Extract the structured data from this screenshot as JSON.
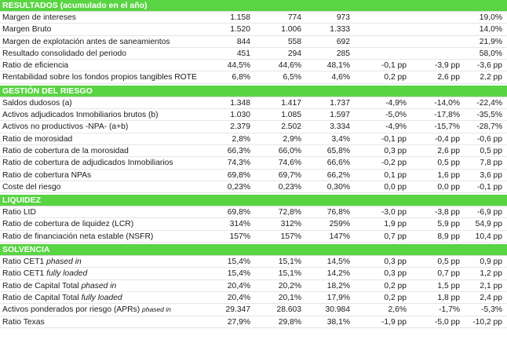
{
  "sections": [
    {
      "title": "RESULTADOS (acumulado en el año)",
      "rows": [
        {
          "label": "Margen de intereses",
          "values": [
            "1.158",
            "774",
            "973",
            "",
            "",
            "19,0%"
          ]
        },
        {
          "label": "Margen Bruto",
          "values": [
            "1.520",
            "1.006",
            "1.333",
            "",
            "",
            "14,0%"
          ]
        },
        {
          "label": "Margen de explotación antes de saneamientos",
          "values": [
            "844",
            "558",
            "692",
            "",
            "",
            "21,9%"
          ]
        },
        {
          "label": "Resultado consolidado del periodo",
          "values": [
            "451",
            "294",
            "285",
            "",
            "",
            "58,0%"
          ]
        },
        {
          "label": "Ratio de eficiencia",
          "values": [
            "44,5%",
            "44,6%",
            "48,1%",
            "-0,1 pp",
            "-3,9 pp",
            "-3,6 pp"
          ]
        },
        {
          "label": "Rentabilidad sobre los fondos propios tangibles ROTE",
          "values": [
            "6,8%",
            "6,5%",
            "4,6%",
            "0,2 pp",
            "2,6 pp",
            "2,2 pp"
          ]
        }
      ]
    },
    {
      "title": "GESTIÓN DEL RIESGO",
      "rows": [
        {
          "label": "Saldos dudosos (a)",
          "values": [
            "1.348",
            "1.417",
            "1.737",
            "-4,9%",
            "-14,0%",
            "-22,4%"
          ]
        },
        {
          "label": "Activos adjudicados Inmobiliarios brutos (b)",
          "values": [
            "1.030",
            "1.085",
            "1.597",
            "-5,0%",
            "-17,8%",
            "-35,5%"
          ]
        },
        {
          "label": "Activos no productivos -NPA- (a+b)",
          "values": [
            "2.379",
            "2.502",
            "3.334",
            "-4,9%",
            "-15,7%",
            "-28,7%"
          ]
        },
        {
          "label": "Ratio de morosidad",
          "values": [
            "2,8%",
            "2,9%",
            "3,4%",
            "-0,1 pp",
            "-0,4 pp",
            "-0,6 pp"
          ]
        },
        {
          "label": "Ratio de cobertura de la morosidad",
          "values": [
            "66,3%",
            "66,0%",
            "65,8%",
            "0,3 pp",
            "2,6 pp",
            "0,5 pp"
          ]
        },
        {
          "label": "Ratio de cobertura de adjudicados Inmobiliarios",
          "values": [
            "74,3%",
            "74,6%",
            "66,6%",
            "-0,2 pp",
            "0,5 pp",
            "7,8 pp"
          ]
        },
        {
          "label": "Ratio de cobertura NPAs",
          "values": [
            "69,8%",
            "69,7%",
            "66,2%",
            "0,1 pp",
            "1,6 pp",
            "3,6 pp"
          ]
        },
        {
          "label": "Coste del riesgo",
          "values": [
            "0,23%",
            "0,23%",
            "0,30%",
            "0,0 pp",
            "0,0 pp",
            "-0,1 pp"
          ]
        }
      ]
    },
    {
      "title": "LIQUIDEZ",
      "rows": [
        {
          "label": "Ratio LtD",
          "values": [
            "69,8%",
            "72,8%",
            "76,8%",
            "-3,0 pp",
            "-3,8 pp",
            "-6,9 pp"
          ]
        },
        {
          "label": "Ratio de cobertura de liquidez (LCR)",
          "values": [
            "314%",
            "312%",
            "259%",
            "1,9 pp",
            "5,9 pp",
            "54,9 pp"
          ]
        },
        {
          "label": "Ratio de financiación neta estable (NSFR)",
          "values": [
            "157%",
            "157%",
            "147%",
            "0,7 pp",
            "8,9 pp",
            "10,4 pp"
          ]
        }
      ]
    },
    {
      "title": "SOLVENCIA",
      "rows": [
        {
          "label": "Ratio CET1 ",
          "label_em": "phased in",
          "values": [
            "15,4%",
            "15,1%",
            "14,5%",
            "0,3 pp",
            "0,5 pp",
            "0,9 pp"
          ]
        },
        {
          "label": "Ratio CET1 ",
          "label_em": "fully loaded",
          "values": [
            "15,4%",
            "15,1%",
            "14,2%",
            "0,3 pp",
            "0,7 pp",
            "1,2 pp"
          ]
        },
        {
          "label": "Ratio de Capital Total ",
          "label_em": "phased in",
          "values": [
            "20,4%",
            "20,2%",
            "18,2%",
            "0,2 pp",
            "1,5 pp",
            "2,1 pp"
          ]
        },
        {
          "label": "Ratio de Capital Total ",
          "label_em": "fully loaded",
          "values": [
            "20,4%",
            "20,1%",
            "17,9%",
            "0,2 pp",
            "1,8 pp",
            "2,4 pp"
          ]
        },
        {
          "label": "Activos ponderados por riesgo (APRs) ",
          "label_em_small": "phased in",
          "values": [
            "29.347",
            "28.603",
            "30.984",
            "2,6%",
            "-1,7%",
            "-5,3%"
          ]
        },
        {
          "label": "Ratio Texas",
          "values": [
            "27,9%",
            "29,8%",
            "38,1%",
            "-1,9 pp",
            "-5,0 pp",
            "-10,2 pp"
          ]
        }
      ]
    }
  ]
}
